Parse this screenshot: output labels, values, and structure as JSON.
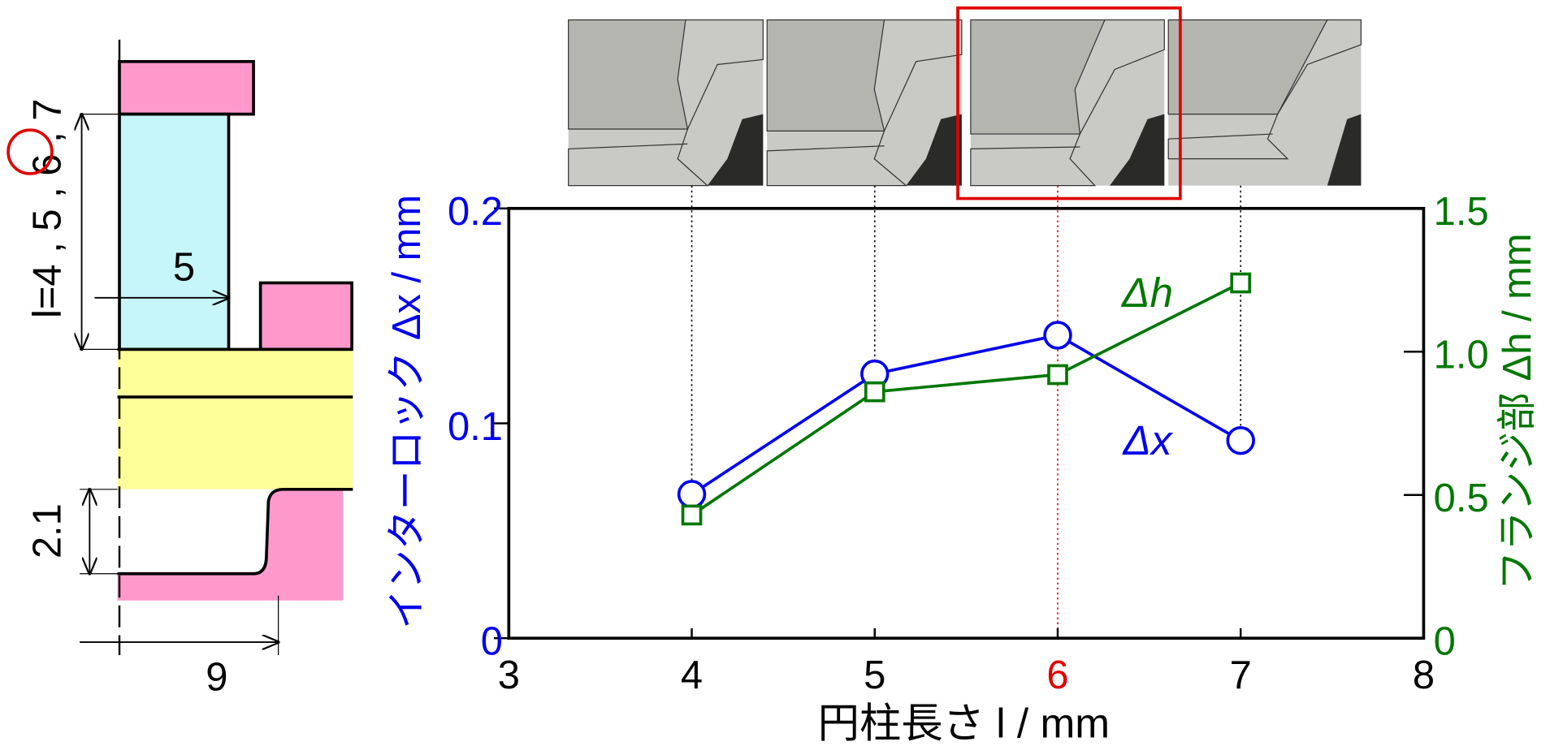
{
  "chart_data": {
    "type": "line",
    "xlabel": "円柱長さ l / mm",
    "ylabel": "インターロック Δx / mm",
    "y2label": "フランジ部 Δh / mm",
    "x": [
      4,
      5,
      6,
      7
    ],
    "series": [
      {
        "name": "Δx",
        "color": "#0000ee",
        "marker": "circle",
        "values": [
          0.067,
          0.123,
          0.141,
          0.092
        ]
      },
      {
        "name": "Δh",
        "color": "#007700",
        "marker": "square",
        "axis": "y2",
        "values": [
          0.43,
          0.86,
          0.92,
          1.24
        ]
      }
    ],
    "xlim": [
      3,
      8
    ],
    "xticks": [
      3,
      4,
      5,
      6,
      7,
      8
    ],
    "ylim": [
      0,
      0.2
    ],
    "yticks": [
      0,
      0.1,
      0.2
    ],
    "y2lim": [
      0,
      1.5
    ],
    "y2ticks": [
      0,
      0.5,
      {
        "value": 1,
        "label": "1.0"
      },
      1.5
    ],
    "highlight_x": 6,
    "highlight_color": "#e00000"
  },
  "diagram": {
    "length_label": "l=4 , 5 , 6 , 7",
    "radius_label": "5",
    "depth_label": "2.1",
    "width_label": "9"
  }
}
